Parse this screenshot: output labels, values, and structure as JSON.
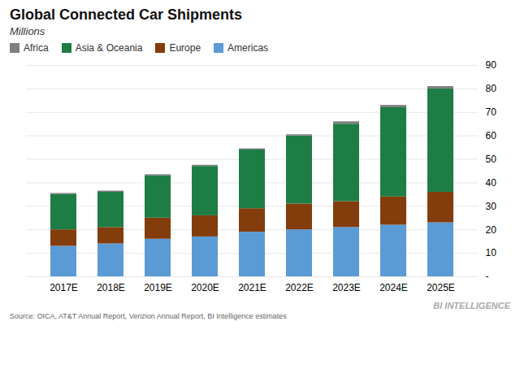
{
  "chart_data": {
    "type": "bar",
    "stacked": true,
    "title": "Global Connected Car Shipments",
    "subtitle": "Millions",
    "categories": [
      "2017E",
      "2018E",
      "2019E",
      "2020E",
      "2021E",
      "2022E",
      "2023E",
      "2024E",
      "2025E"
    ],
    "series": [
      {
        "name": "Americas",
        "color": "#5b9bd5",
        "values": [
          13,
          14,
          16,
          17,
          19,
          20,
          21,
          22,
          23
        ]
      },
      {
        "name": "Europe",
        "color": "#833c0b",
        "values": [
          7,
          7,
          9,
          9,
          10,
          11,
          11,
          12,
          13
        ]
      },
      {
        "name": "Asia & Oceania",
        "color": "#1e7d45",
        "values": [
          15,
          15,
          18,
          21,
          25,
          29,
          33,
          38,
          44
        ]
      },
      {
        "name": "Africa",
        "color": "#7f7f7f",
        "values": [
          0.5,
          0.5,
          0.5,
          0.5,
          0.5,
          0.5,
          1,
          1,
          1
        ]
      }
    ],
    "ylim": [
      0,
      90
    ],
    "yticks": [
      {
        "value": 0,
        "label": "-"
      },
      10,
      20,
      30,
      40,
      50,
      60,
      70,
      80,
      90
    ],
    "grid": true,
    "legend": "upper left",
    "annotations": [
      "BI INTELLIGENCE",
      "Source: OICA, AT&T Annual Report, Verizion Annual Report, BI Intelligence estimates"
    ]
  }
}
